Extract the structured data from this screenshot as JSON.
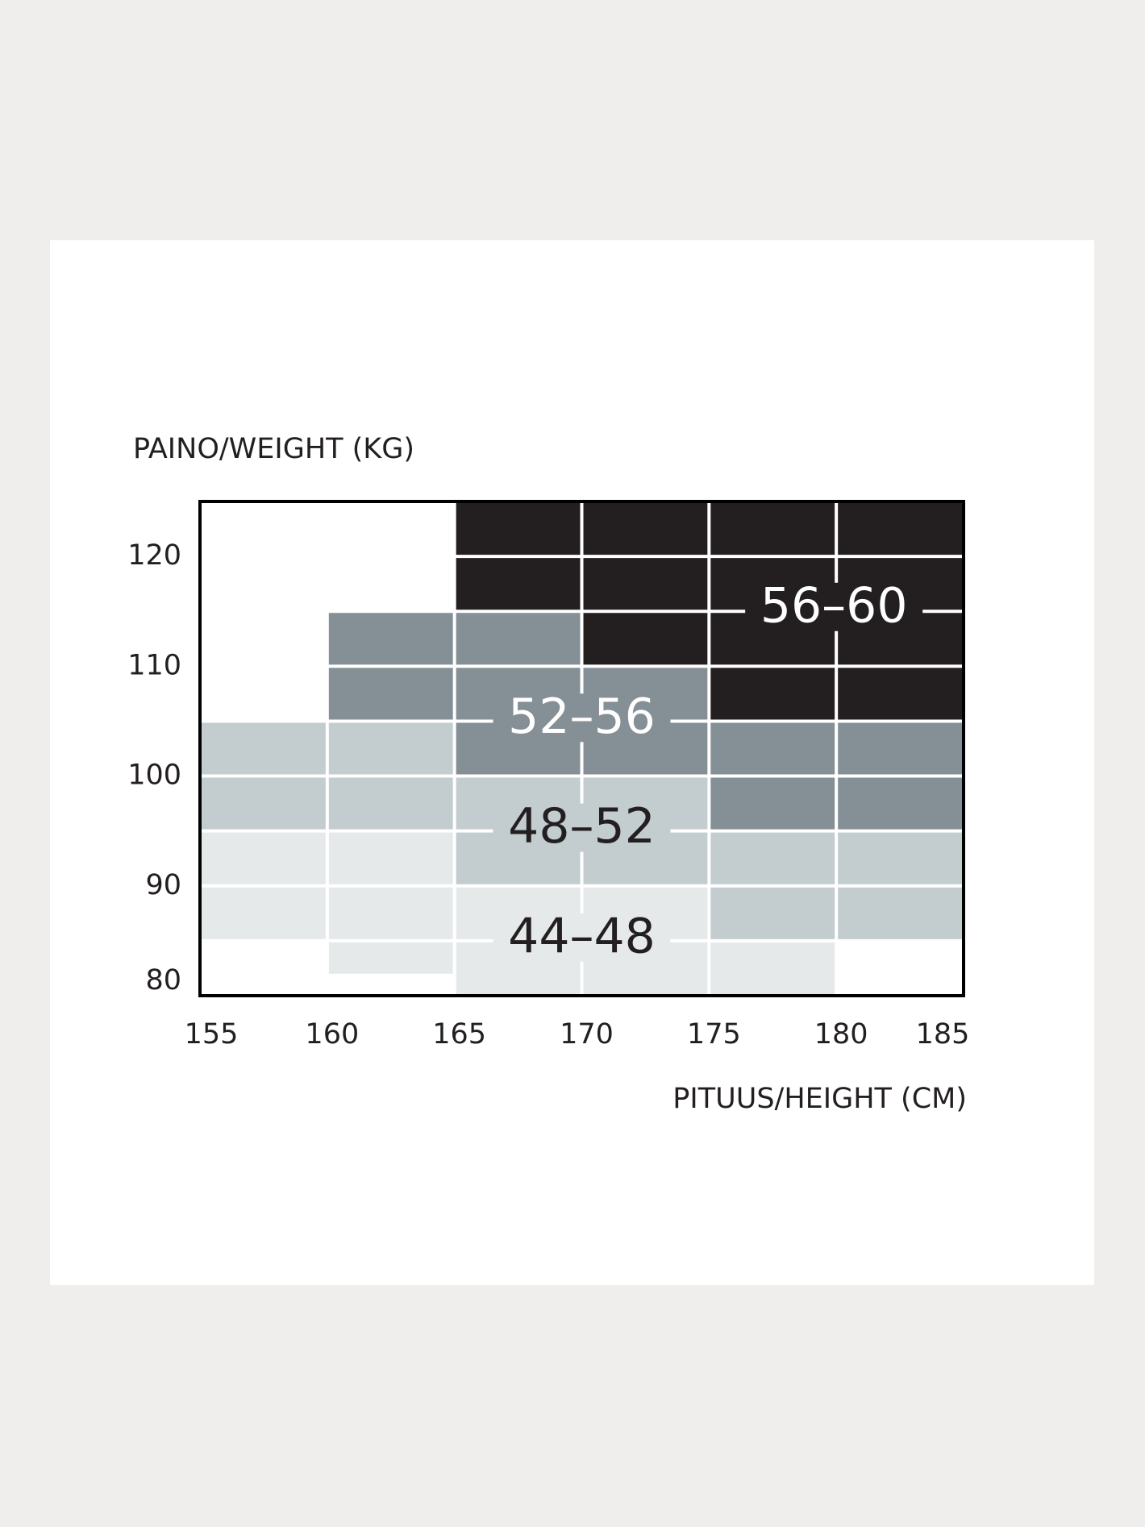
{
  "chart_data": {
    "type": "size-zones",
    "y_label": "PAINO/WEIGHT (KG)",
    "x_label": "PITUUS/HEIGHT (CM)",
    "x_bins": [
      155,
      160,
      165,
      170,
      175,
      180,
      185
    ],
    "xlim": [
      155,
      185
    ],
    "xticks": [
      155,
      160,
      165,
      170,
      175,
      180,
      185
    ],
    "ylim": [
      80,
      125
    ],
    "yticks": [
      80,
      90,
      100,
      110,
      120
    ],
    "series": [
      {
        "name": "44–48",
        "color": "#e6e9ea",
        "text_color": "#231f20",
        "low": [
          85,
          82,
          80,
          80,
          80,
          null
        ],
        "high": [
          95,
          95,
          90,
          90,
          85,
          null
        ]
      },
      {
        "name": "48–52",
        "color": "#c3ccce",
        "text_color": "#231f20",
        "low": [
          95,
          95,
          90,
          90,
          85,
          85
        ],
        "high": [
          105,
          105,
          100,
          100,
          95,
          95
        ]
      },
      {
        "name": "52–56",
        "color": "#858f96",
        "text_color": "#ffffff",
        "low": [
          null,
          105,
          100,
          100,
          95,
          95
        ],
        "high": [
          null,
          115,
          115,
          110,
          105,
          105
        ]
      },
      {
        "name": "56–60",
        "color": "#231f20",
        "text_color": "#ffffff",
        "low": [
          null,
          null,
          115,
          110,
          105,
          105
        ],
        "high": [
          null,
          null,
          125,
          125,
          125,
          125
        ]
      }
    ]
  }
}
